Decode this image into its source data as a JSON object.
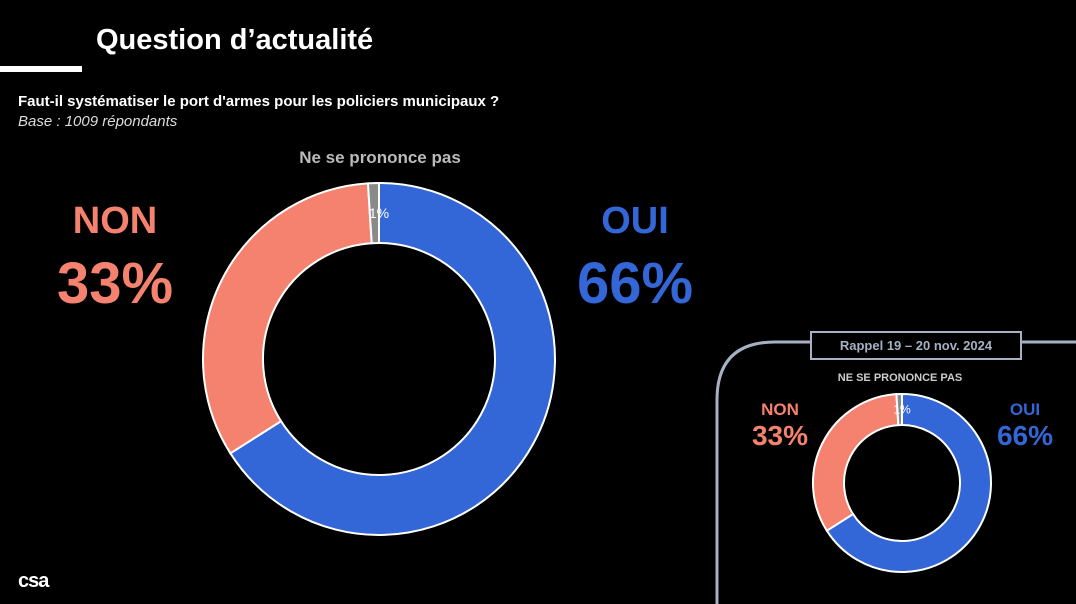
{
  "header": {
    "title": "Question d’actualité"
  },
  "question": "Faut-il systématiser le port d'armes pour les policiers municipaux ?",
  "base": "Base : 1009 répondants",
  "logo": "csa",
  "colors": {
    "oui": "#3366d6",
    "non": "#f5826f",
    "nsp": "#8a8a8a",
    "frame": "#a7b1c4"
  },
  "chart_data": [
    {
      "type": "pie",
      "variant": "donut",
      "categories": [
        "OUI",
        "NON",
        "Ne se prononce pas"
      ],
      "values": [
        66,
        33,
        1
      ],
      "labels": [
        "66%",
        "33%",
        "1%"
      ],
      "header_labels": {
        "nsp": "Ne se prononce pas",
        "non": "NON",
        "oui": "OUI"
      }
    },
    {
      "type": "pie",
      "variant": "donut",
      "title": "Rappel 19 – 20 nov. 2024",
      "categories": [
        "OUI",
        "NON",
        "NE SE PRONONCE PAS"
      ],
      "values": [
        66,
        33,
        1
      ],
      "labels": [
        "66%",
        "33%",
        "1%"
      ],
      "header_labels": {
        "nsp": "NE SE PRONONCE PAS",
        "non": "NON",
        "oui": "OUI"
      }
    }
  ]
}
